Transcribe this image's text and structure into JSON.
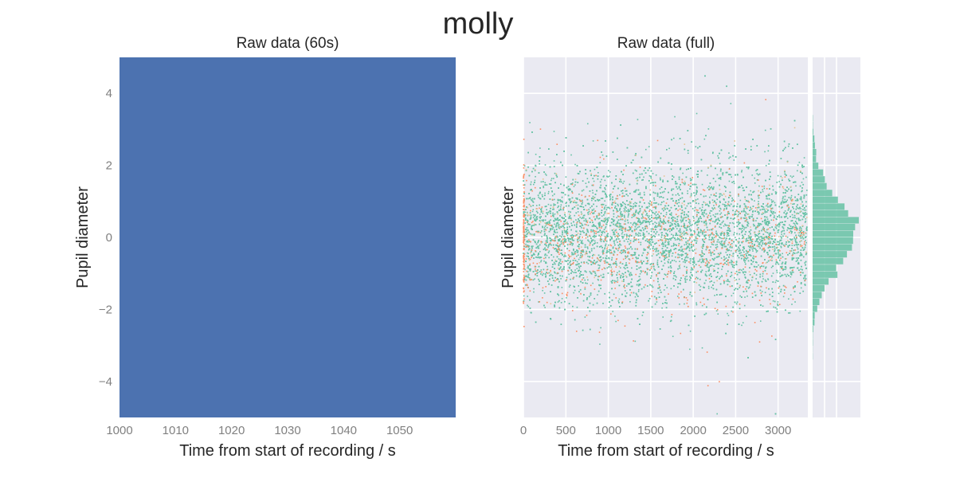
{
  "figure": {
    "suptitle": "molly"
  },
  "colors": {
    "panel_bg": "#eaeaf2",
    "grid": "#ffffff",
    "fill_block": "#4c72b0",
    "series_main": "#66c2a5",
    "series_secondary": "#fc8d62",
    "series_tertiary": "#e5c494",
    "tick_text": "#808080",
    "label_text": "#262626"
  },
  "chart_data": [
    {
      "type": "area",
      "title": "Raw data (60s)",
      "xlabel": "Time from start of recording / s",
      "ylabel": "Pupil diameter",
      "xlim": [
        1000,
        1060
      ],
      "ylim": [
        -5,
        5
      ],
      "xticks": [
        "1000",
        "1010",
        "1020",
        "1030",
        "1040",
        "1050"
      ],
      "yticks": [
        "4",
        "2",
        "0",
        "−2",
        "−4"
      ],
      "xtick_values": [
        1000,
        1010,
        1020,
        1030,
        1040,
        1050
      ],
      "ytick_values": [
        4,
        2,
        0,
        -2,
        -4
      ],
      "fill_range": [
        -5,
        5
      ],
      "grid": false
    },
    {
      "type": "scatter",
      "title": "Raw data (full)",
      "xlabel": "Time from start of recording / s",
      "ylabel": "Pupil diameter",
      "xlim": [
        0,
        3350
      ],
      "ylim": [
        -5,
        5
      ],
      "xticks": [
        "0",
        "500",
        "1000",
        "1500",
        "2000",
        "2500",
        "3000"
      ],
      "xtick_values": [
        0,
        500,
        1000,
        1500,
        2000,
        2500,
        3000
      ],
      "ygrid_values": [
        -4,
        -2,
        0,
        2,
        4
      ],
      "grid": true,
      "series": [
        {
          "color_key": "series_main",
          "n_points": 9000,
          "mean": 0.1,
          "sd": 0.95
        },
        {
          "color_key": "series_secondary",
          "n_points": 700,
          "mean": -0.2,
          "sd": 0.9
        },
        {
          "color_key": "series_tertiary",
          "n_points": 200,
          "mean": 0.4,
          "sd": 0.8
        }
      ],
      "marginal_histogram": {
        "orientation": "horizontal",
        "bins": 36,
        "range": [
          -3.4,
          3.4
        ],
        "color_key": "series_main",
        "grid": true
      }
    }
  ]
}
